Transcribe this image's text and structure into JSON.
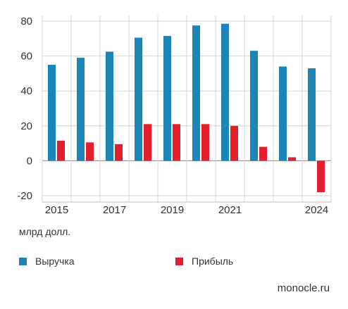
{
  "chart_data": {
    "type": "bar",
    "categories": [
      "2015",
      "2016",
      "2017",
      "2018",
      "2019",
      "2020",
      "2021",
      "2022",
      "2023",
      "2024"
    ],
    "x_tick_labels": [
      "2015",
      "",
      "2017",
      "",
      "2019",
      "",
      "2021",
      "",
      "",
      "2024"
    ],
    "series": [
      {
        "name": "Выручка",
        "color": "#1a85b8",
        "values": [
          55,
          59,
          62.5,
          70.5,
          71.5,
          77.5,
          78.5,
          63,
          54,
          53
        ]
      },
      {
        "name": "Прибыль",
        "color": "#e31e2d",
        "values": [
          11.5,
          10.5,
          9.5,
          21,
          21,
          21,
          20,
          8,
          2,
          -18
        ]
      }
    ],
    "ylim": [
      -20,
      80
    ],
    "yticks": [
      -20,
      0,
      20,
      40,
      60,
      80
    ],
    "grid": true,
    "legend_position": "bottom-left"
  },
  "unit_label": "млрд долл.",
  "source": "monocle.ru"
}
